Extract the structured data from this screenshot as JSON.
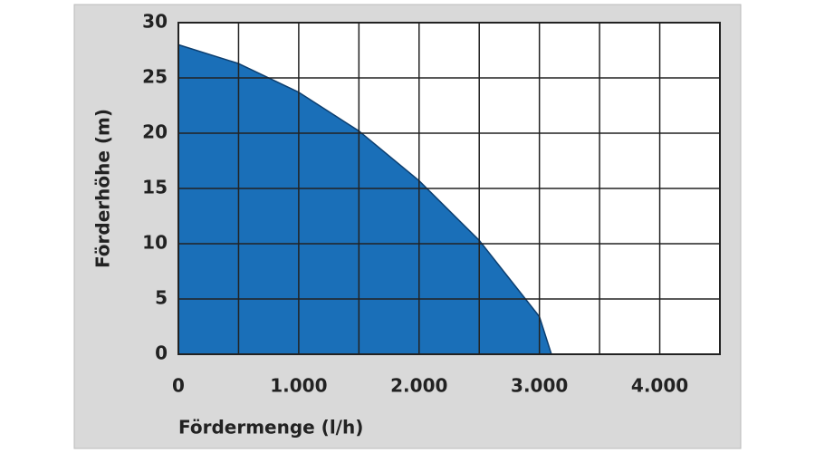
{
  "chart_data": {
    "type": "area",
    "x_label": "Fördermenge (l/h)",
    "y_label": "Förderhöhe (m)",
    "x": [
      0,
      500,
      1000,
      1500,
      2000,
      2500,
      3000,
      3100
    ],
    "values": [
      28,
      26.3,
      23.7,
      20.2,
      15.7,
      10.3,
      3.4,
      0
    ],
    "color": "#1a6fb8",
    "xlim": [
      0,
      4500
    ],
    "xticks": [
      0,
      {
        "value": 1000,
        "label": "1.000"
      },
      {
        "value": 2000,
        "label": "2.000"
      },
      {
        "value": 3000,
        "label": "3.000"
      },
      {
        "value": 4000,
        "label": "4.000"
      }
    ],
    "x_minor_ticks": [
      500,
      1500,
      2500,
      3500,
      4500
    ],
    "ylim": [
      0,
      30
    ],
    "yticks": [
      0,
      5,
      10,
      15,
      20,
      25,
      30
    ],
    "grid": true
  }
}
